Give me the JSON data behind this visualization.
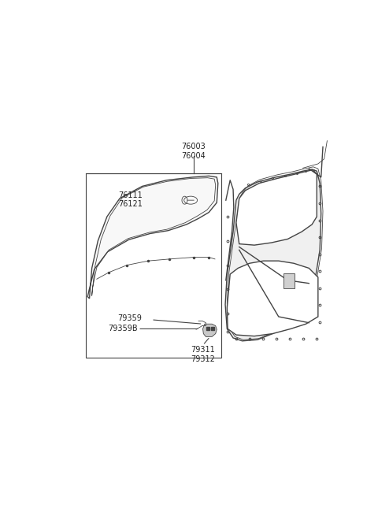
{
  "background_color": "#ffffff",
  "line_color": "#444444",
  "text_color": "#222222",
  "fig_width": 4.8,
  "fig_height": 6.55,
  "dpi": 100,
  "label_fontsize": 7.0,
  "labels": {
    "76003_76004": "76003\n76004",
    "76111_76121": "76111\n76121",
    "79359": "79359",
    "79359B": "79359B",
    "79311_79312": "79311\n79312"
  }
}
